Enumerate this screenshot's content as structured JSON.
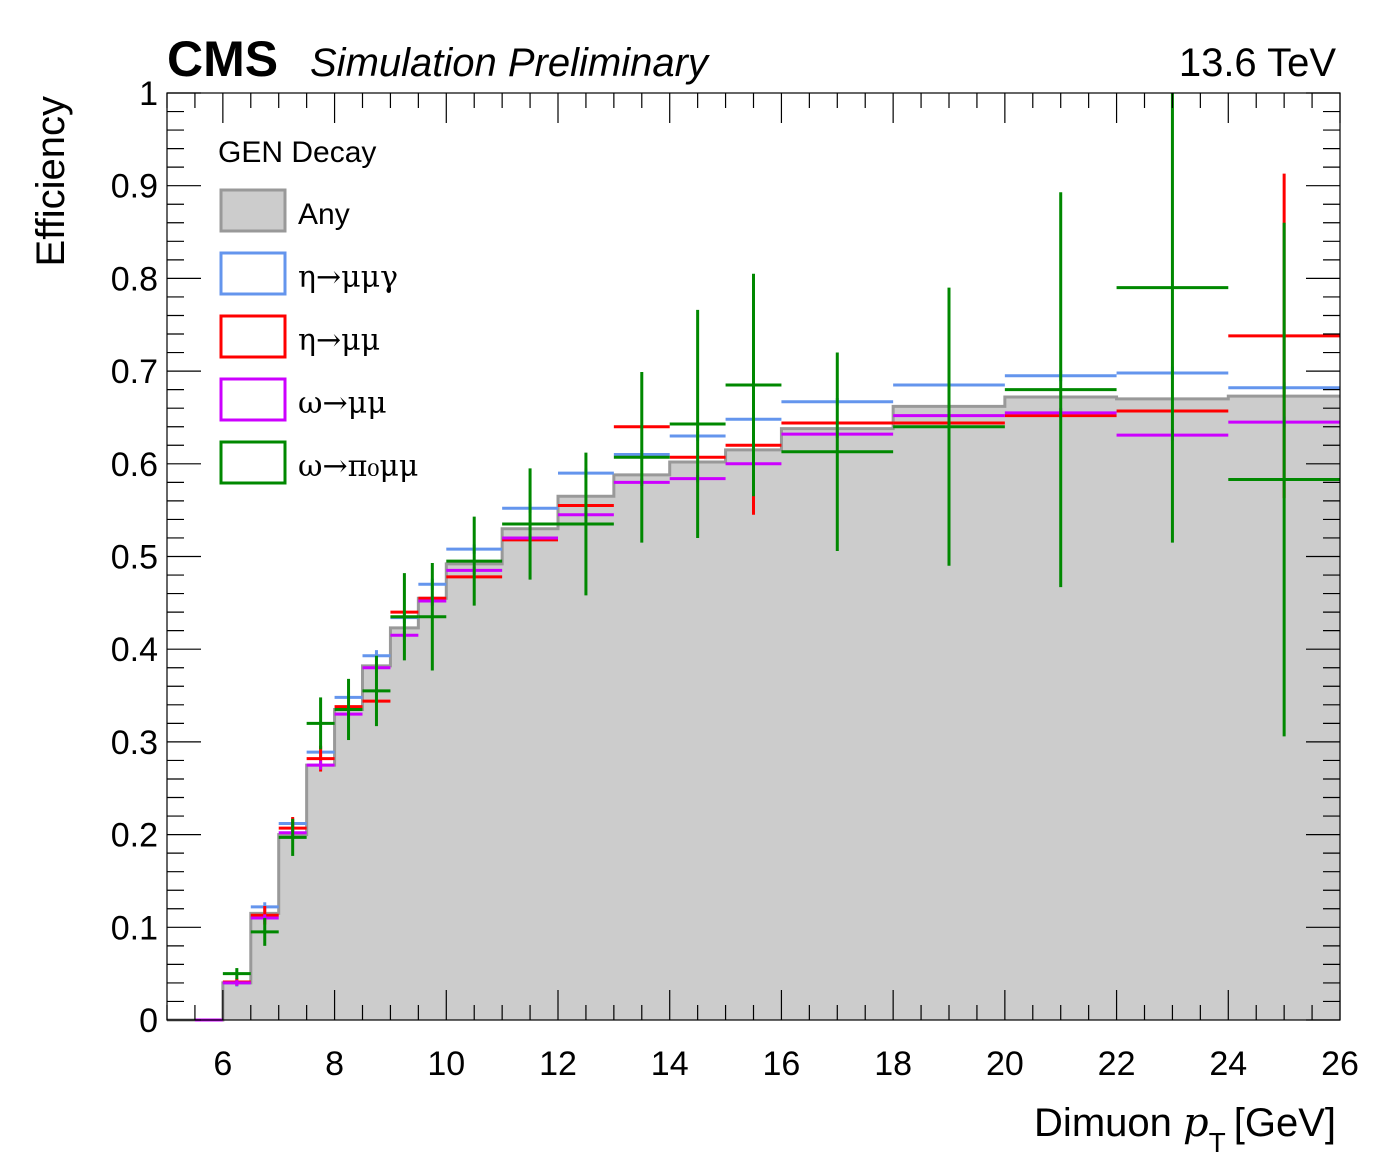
{
  "chart_data": {
    "type": "line",
    "experiment_label": "CMS",
    "status_label": "Simulation Preliminary",
    "energy_label": "13.6 TeV",
    "xlabel": "Dimuon",
    "xlabel_var": "p",
    "xlabel_sub": "T",
    "xlabel_unit": "[GeV]",
    "ylabel": "Efficiency",
    "xlim": [
      5,
      26
    ],
    "ylim": [
      0,
      1
    ],
    "x_ticks": [
      "6",
      "8",
      "10",
      "12",
      "14",
      "16",
      "18",
      "20",
      "22",
      "24",
      "26"
    ],
    "y_ticks": [
      "0",
      "0.1",
      "0.2",
      "0.3",
      "0.4",
      "0.5",
      "0.6",
      "0.7",
      "0.8",
      "0.9",
      "1"
    ],
    "legend_title": "GEN Decay",
    "legend_position": "top-left",
    "bin_edges": [
      5,
      5.5,
      6,
      6.5,
      7,
      7.5,
      8,
      8.5,
      9,
      9.5,
      10,
      11,
      12,
      13,
      14,
      15,
      16,
      18,
      20,
      22,
      24,
      26
    ],
    "series": [
      {
        "name": "Any",
        "style": "filled-histogram",
        "color": "#999999",
        "fill": "#cccccc",
        "values": [
          0,
          0,
          0.04,
          0.115,
          0.2,
          0.275,
          0.335,
          0.382,
          0.423,
          0.455,
          0.492,
          0.53,
          0.565,
          0.588,
          0.602,
          0.615,
          0.638,
          0.662,
          0.672,
          0.67,
          0.673
        ],
        "errors": []
      },
      {
        "name": "η→μμγ",
        "style": "errorbar",
        "color": "#6495ed",
        "values": [
          0,
          0,
          0.04,
          0.122,
          0.212,
          0.289,
          0.348,
          0.393,
          0.434,
          0.47,
          0.508,
          0.552,
          0.59,
          0.61,
          0.63,
          0.648,
          0.667,
          0.685,
          0.695,
          0.698,
          0.682
        ],
        "errors": [
          0,
          0,
          0.004,
          0.005,
          0.006,
          0.006,
          0.006,
          0.006,
          0.006,
          0.006,
          0.005,
          0.005,
          0.005,
          0.005,
          0.005,
          0.005,
          0.004,
          0.005,
          0.006,
          0.007,
          0.006
        ]
      },
      {
        "name": "η→μμ",
        "style": "errorbar",
        "color": "#ff0000",
        "values": [
          0,
          0,
          0.041,
          0.113,
          0.207,
          0.282,
          0.338,
          0.344,
          0.44,
          0.455,
          0.478,
          0.518,
          0.555,
          0.64,
          0.607,
          0.62,
          0.644,
          0.644,
          0.652,
          0.657,
          0.738
        ],
        "errors": [
          0,
          0,
          0.004,
          0.01,
          0.012,
          0.014,
          0.0,
          0.0,
          0.0,
          0.0,
          0.0,
          0.0,
          0.0,
          0.0,
          0.0,
          0.075,
          0.0,
          0.0,
          0.0,
          0.0,
          0.175
        ]
      },
      {
        "name": "ω→μμ",
        "style": "errorbar",
        "color": "#cc00ff",
        "values": [
          0,
          0,
          0.04,
          0.11,
          0.202,
          0.275,
          0.33,
          0.38,
          0.415,
          0.452,
          0.485,
          0.52,
          0.545,
          0.58,
          0.584,
          0.6,
          0.632,
          0.652,
          0.655,
          0.631,
          0.645
        ],
        "errors": [
          0,
          0,
          0.003,
          0.004,
          0.005,
          0.005,
          0.005,
          0.005,
          0.005,
          0.005,
          0.004,
          0.004,
          0.004,
          0.004,
          0.004,
          0.004,
          0.004,
          0.004,
          0.005,
          0.006,
          0.006
        ]
      },
      {
        "name": "ω→π₀μμ",
        "style": "errorbar",
        "color": "#008800",
        "values": [
          0,
          0,
          0.05,
          0.095,
          0.197,
          0.32,
          0.335,
          0.355,
          0.435,
          0.435,
          0.495,
          0.535,
          0.535,
          0.607,
          0.643,
          0.685,
          0.613,
          0.64,
          0.68,
          0.79,
          0.583
        ],
        "errors": [
          0,
          0,
          0.006,
          0.015,
          0.02,
          0.028,
          0.033,
          0.038,
          0.047,
          0.058,
          0.048,
          0.06,
          0.077,
          0.092,
          0.123,
          0.12,
          0.107,
          0.15,
          0.213,
          0.275,
          0.277
        ]
      }
    ]
  }
}
